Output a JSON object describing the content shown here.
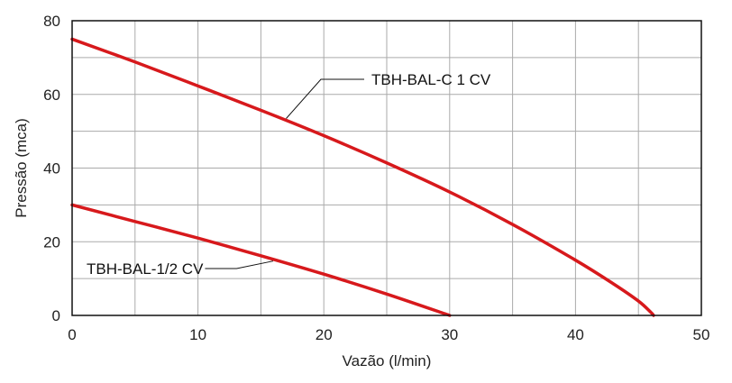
{
  "chart_data": {
    "type": "line",
    "xlabel": "Vazão (l/min)",
    "ylabel": "Pressão (mca)",
    "xlim": [
      0,
      50
    ],
    "ylim": [
      0,
      80
    ],
    "x_ticks": [
      0,
      10,
      20,
      30,
      40,
      50
    ],
    "y_ticks": [
      0,
      20,
      40,
      60,
      80
    ],
    "x_tick_labels": [
      "0",
      "10",
      "20",
      "30",
      "40",
      "50"
    ],
    "y_tick_labels": [
      "0",
      "20",
      "40",
      "60",
      "80"
    ],
    "grid": true,
    "grid_x_step": 5,
    "grid_y_step": 10,
    "line_color": "#d7191c",
    "series": [
      {
        "name": "TBH-BAL-C 1 CV",
        "x": [
          0,
          5,
          10,
          15,
          20,
          25,
          30,
          35,
          40,
          43,
          45,
          46,
          46.2
        ],
        "y": [
          75,
          68.8,
          62.3,
          55.7,
          48.8,
          41.4,
          33.5,
          24.7,
          15,
          8.6,
          3.9,
          0.8,
          0
        ]
      },
      {
        "name": "TBH-BAL-1/2 CV",
        "x": [
          0,
          5,
          10,
          15,
          20,
          25,
          30
        ],
        "y": [
          30,
          25.5,
          21,
          16.2,
          11.2,
          5.8,
          0
        ]
      }
    ]
  }
}
